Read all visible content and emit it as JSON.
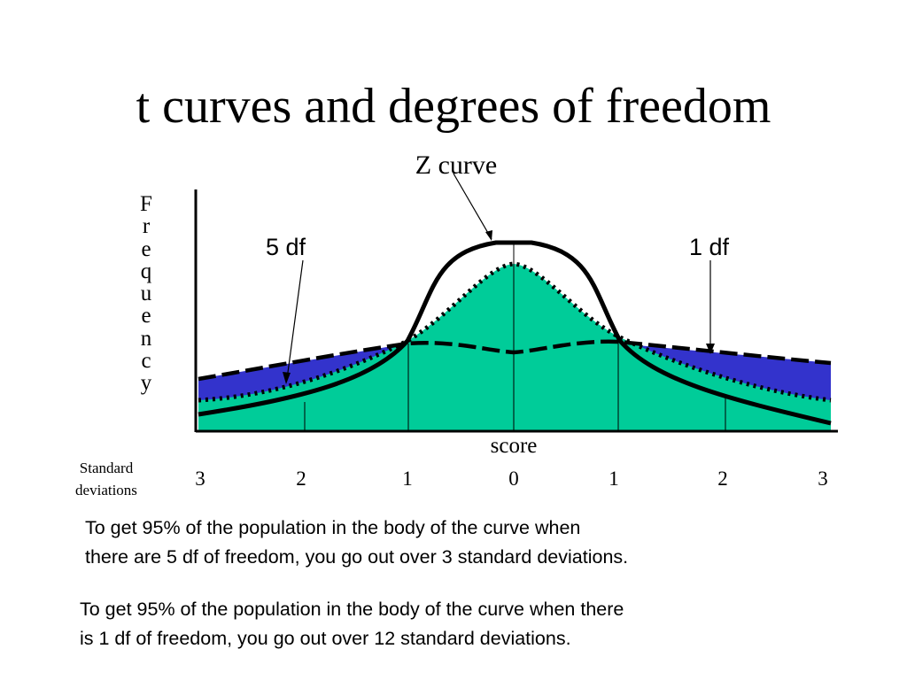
{
  "title": "t curves and degrees of freedom",
  "y_axis_label": "Frequency",
  "x_axis_label": "score",
  "z_curve_label": "Z curve",
  "df5_label": "5 df",
  "df1_label": "1 df",
  "sd_label_line1": "Standard",
  "sd_label_line2": "deviations",
  "ticks": [
    "3",
    "2",
    "1",
    "0",
    "1",
    "2",
    "3"
  ],
  "para1": {
    "line1": "To get 95% of the population in the body of the curve when",
    "line2": "there are 5 df of freedom, you go out over 3 standard deviations."
  },
  "para2": {
    "line1": "To get 95% of the population in the body of the curve when there",
    "line2": "is 1 df of freedom, you go out over 12 standard deviations."
  },
  "colors": {
    "fill_5df": "#00cc99",
    "fill_1df": "#3333cc",
    "curve_stroke": "#000000"
  }
}
